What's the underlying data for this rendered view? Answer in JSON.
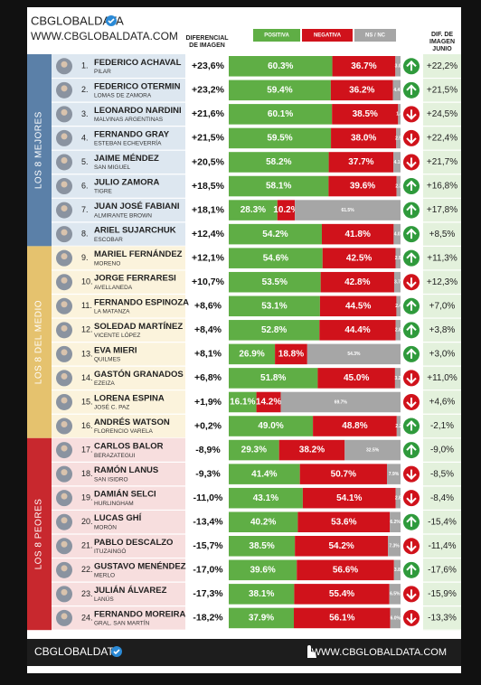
{
  "header": {
    "brand": "CBGLOBALDATA",
    "url": "WWW.CBGLOBALDATA.COM",
    "col_diff": [
      "DIFERENCIAL",
      "DE IMAGEN"
    ],
    "legend": [
      {
        "label": "POSITIVA",
        "color": "#5fae45"
      },
      {
        "label": "NEGATIVA",
        "color": "#d0121b"
      },
      {
        "label": "NS / NC",
        "color": "#a6a6a6"
      }
    ],
    "col_june": [
      "DIF. DE",
      "IMAGEN",
      "JUNIO"
    ]
  },
  "trend_colors": {
    "up": "#2f9a3c",
    "down": "#d0121b"
  },
  "groups": [
    {
      "label": "LOS 8 MEJORES",
      "color": "#5b80a8",
      "tint": "#dde7f0",
      "rows": [
        {
          "rank": "1.",
          "name": "FEDERICO ACHAVAL",
          "place": "PILAR",
          "diff": "+23,6%",
          "values": [
            60.3,
            36.7,
            3.0
          ],
          "value_labels": [
            "60.3%",
            "36.7%",
            "3.0"
          ],
          "trend": "up",
          "june": "+22,2%"
        },
        {
          "rank": "2.",
          "name": "FEDERICO OTERMIN",
          "place": "LOMAS DE ZAMORA",
          "diff": "+23,2%",
          "values": [
            59.4,
            36.2,
            4.4
          ],
          "value_labels": [
            "59.4%",
            "36.2%",
            "4.4"
          ],
          "trend": "up",
          "june": "+21,5%"
        },
        {
          "rank": "3.",
          "name": "LEONARDO NARDINI",
          "place": "MALVINAS ARGENTINAS",
          "diff": "+21,6%",
          "values": [
            60.1,
            38.5,
            1.4
          ],
          "value_labels": [
            "60.1%",
            "38.5%",
            "1.4"
          ],
          "trend": "down",
          "june": "+24,5%"
        },
        {
          "rank": "4.",
          "name": "FERNANDO GRAY",
          "place": "ESTEBAN ECHEVERRÍA",
          "diff": "+21,5%",
          "values": [
            59.5,
            38.0,
            2.5
          ],
          "value_labels": [
            "59.5%",
            "38.0%",
            "2.5"
          ],
          "trend": "down",
          "june": "+22,4%"
        },
        {
          "rank": "5.",
          "name": "JAIME MÉNDEZ",
          "place": "SAN MIGUEL",
          "diff": "+20,5%",
          "values": [
            58.2,
            37.7,
            4.1
          ],
          "value_labels": [
            "58.2%",
            "37.7%",
            "4.1"
          ],
          "trend": "down",
          "june": "+21,7%"
        },
        {
          "rank": "6.",
          "name": "JULIO ZAMORA",
          "place": "TIGRE",
          "diff": "+18,5%",
          "values": [
            58.1,
            39.6,
            2.3
          ],
          "value_labels": [
            "58.1%",
            "39.6%",
            "2.3"
          ],
          "trend": "up",
          "june": "+16,8%"
        },
        {
          "rank": "7.",
          "name": "JUAN JOSÉ FABIANI",
          "place": "ALMIRANTE BROWN",
          "diff": "+18,1%",
          "values": [
            28.3,
            10.2,
            61.5
          ],
          "value_labels": [
            "28.3%",
            "10.2%",
            "61.5%"
          ],
          "trend": "up",
          "june": "+17,8%"
        },
        {
          "rank": "8.",
          "name": "ARIEL SUJARCHUK",
          "place": "ESCOBAR",
          "diff": "+12,4%",
          "values": [
            54.2,
            41.8,
            4.0
          ],
          "value_labels": [
            "54.2%",
            "41.8%",
            "4.0"
          ],
          "trend": "up",
          "june": "+8,5%"
        }
      ]
    },
    {
      "label": "LOS 8 DEL MEDIO",
      "color": "#e5c26e",
      "tint": "#fbf3dc",
      "rows": [
        {
          "rank": "9.",
          "name": "MARIEL FERNÁNDEZ",
          "place": "MORENO",
          "diff": "+12,1%",
          "values": [
            54.6,
            42.5,
            2.9
          ],
          "value_labels": [
            "54.6%",
            "42.5%",
            "2.9"
          ],
          "trend": "up",
          "june": "+11,3%"
        },
        {
          "rank": "10.",
          "name": "JORGE FERRARESI",
          "place": "AVELLANEDA",
          "diff": "+10,7%",
          "values": [
            53.5,
            42.8,
            3.7
          ],
          "value_labels": [
            "53.5%",
            "42.8%",
            "3.7"
          ],
          "trend": "down",
          "june": "+12,3%"
        },
        {
          "rank": "11.",
          "name": "FERNANDO ESPINOZA",
          "place": "LA MATANZA",
          "diff": "+8,6%",
          "values": [
            53.1,
            44.5,
            2.4
          ],
          "value_labels": [
            "53.1%",
            "44.5%",
            "2.4"
          ],
          "trend": "up",
          "june": "+7,0%"
        },
        {
          "rank": "12.",
          "name": "SOLEDAD MARTÍNEZ",
          "place": "VICENTE LÓPEZ",
          "diff": "+8,4%",
          "values": [
            52.8,
            44.4,
            2.8
          ],
          "value_labels": [
            "52.8%",
            "44.4%",
            "2.8"
          ],
          "trend": "up",
          "june": "+3,8%"
        },
        {
          "rank": "13.",
          "name": "EVA MIERI",
          "place": "QUILMES",
          "diff": "+8,1%",
          "values": [
            26.9,
            18.8,
            54.3
          ],
          "value_labels": [
            "26.9%",
            "18.8%",
            "54.3%"
          ],
          "trend": "up",
          "june": "+3,0%"
        },
        {
          "rank": "14.",
          "name": "GASTÓN GRANADOS",
          "place": "EZEIZA",
          "diff": "+6,8%",
          "values": [
            51.8,
            45.0,
            3.2
          ],
          "value_labels": [
            "51.8%",
            "45.0%",
            "3.2"
          ],
          "trend": "down",
          "june": "+11,0%"
        },
        {
          "rank": "15.",
          "name": "LORENA ESPINA",
          "place": "JOSÉ C. PAZ",
          "diff": "+1,9%",
          "values": [
            16.1,
            14.2,
            69.7
          ],
          "value_labels": [
            "16.1%",
            "14.2%",
            "69.7%"
          ],
          "trend": "down",
          "june": "+4,6%"
        },
        {
          "rank": "16.",
          "name": "ANDRÉS WATSON",
          "place": "FLORENCIO VARELA",
          "diff": "+0,2%",
          "values": [
            49.0,
            48.8,
            2.2
          ],
          "value_labels": [
            "49.0%",
            "48.8%",
            "2.2"
          ],
          "trend": "up",
          "june": "-2,1%"
        }
      ]
    },
    {
      "label": "LOS 8 PEORES",
      "color": "#c8282e",
      "tint": "#f7dede",
      "rows": [
        {
          "rank": "17.",
          "name": "CARLOS BALOR",
          "place": "BERAZATEGUI",
          "diff": "-8,9%",
          "values": [
            29.3,
            38.2,
            32.5
          ],
          "value_labels": [
            "29.3%",
            "38.2%",
            "32.5%"
          ],
          "trend": "up",
          "june": "-9,0%"
        },
        {
          "rank": "18.",
          "name": "RAMÓN LANUS",
          "place": "SAN ISIDRO",
          "diff": "-9,3%",
          "values": [
            41.4,
            50.7,
            7.9
          ],
          "value_labels": [
            "41.4%",
            "50.7%",
            "7.9%"
          ],
          "trend": "down",
          "june": "-8,5%"
        },
        {
          "rank": "19.",
          "name": "DAMIÁN SELCI",
          "place": "HURLINGHAM",
          "diff": "-11,0%",
          "values": [
            43.1,
            54.1,
            2.8
          ],
          "value_labels": [
            "43.1%",
            "54.1%",
            "2.8"
          ],
          "trend": "down",
          "june": "-8,4%"
        },
        {
          "rank": "20.",
          "name": "LUCAS GHÍ",
          "place": "MORÓN",
          "diff": "-13,4%",
          "values": [
            40.2,
            53.6,
            6.2
          ],
          "value_labels": [
            "40.2%",
            "53.6%",
            "6.2%"
          ],
          "trend": "up",
          "june": "-15,4%"
        },
        {
          "rank": "21.",
          "name": "PABLO DESCALZO",
          "place": "ITUZAINGÓ",
          "diff": "-15,7%",
          "values": [
            38.5,
            54.2,
            7.3
          ],
          "value_labels": [
            "38.5%",
            "54.2%",
            "7.3%"
          ],
          "trend": "down",
          "june": "-11,4%"
        },
        {
          "rank": "22.",
          "name": "GUSTAVO MENÉNDEZ",
          "place": "MERLO",
          "diff": "-17,0%",
          "values": [
            39.6,
            56.6,
            3.8
          ],
          "value_labels": [
            "39.6%",
            "56.6%",
            "3.8"
          ],
          "trend": "up",
          "june": "-17,6%"
        },
        {
          "rank": "23.",
          "name": "JULIÁN ÁLVAREZ",
          "place": "LANÚS",
          "diff": "-17,3%",
          "values": [
            38.1,
            55.4,
            6.5
          ],
          "value_labels": [
            "38.1%",
            "55.4%",
            "6.5%"
          ],
          "trend": "down",
          "june": "-15,9%"
        },
        {
          "rank": "24.",
          "name": "FERNANDO MOREIRA",
          "place": "GRAL. SAN MARTÍN",
          "diff": "-18,2%",
          "values": [
            37.9,
            56.1,
            6.0
          ],
          "value_labels": [
            "37.9%",
            "56.1%",
            "6.0%"
          ],
          "trend": "down",
          "june": "-13,3%"
        }
      ]
    }
  ],
  "footer": {
    "brand": "CBGLOBALDATA",
    "url": "WWW.CBGLOBALDATA.COM"
  }
}
